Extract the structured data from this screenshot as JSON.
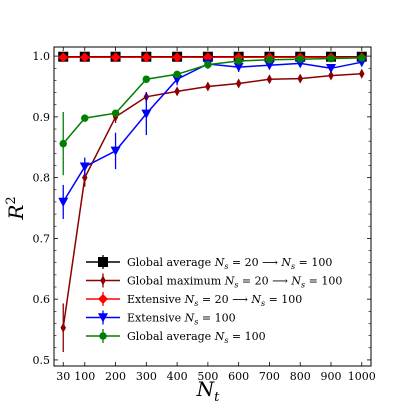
{
  "chart_data": {
    "type": "line",
    "xlabel": "N",
    "xlabel_sub": "t",
    "ylabel": "R",
    "ylabel_sup": "2",
    "x": [
      30,
      100,
      200,
      300,
      400,
      500,
      600,
      700,
      800,
      900,
      1000
    ],
    "xlim": [
      0,
      1030
    ],
    "ylim": [
      0.49,
      1.015
    ],
    "x_ticks": [
      30,
      100,
      200,
      300,
      400,
      500,
      600,
      700,
      800,
      900,
      1000
    ],
    "x_tick_labels": [
      "30",
      "100",
      "200",
      "300",
      "400",
      "500",
      "600",
      "700",
      "800",
      "900",
      "1000"
    ],
    "y_ticks": [
      0.5,
      0.6,
      0.7,
      0.8,
      0.9,
      1.0
    ],
    "y_tick_labels": [
      "0.5",
      "0.6",
      "0.7",
      "0.8",
      "0.9",
      "1.0"
    ],
    "grid": false,
    "legend_position": "lower-right",
    "series": [
      {
        "name": "Global average N_s = 20 ⟶ N_s = 100",
        "color": "#000000",
        "marker": "square",
        "values": [
          0.999,
          0.999,
          0.999,
          0.999,
          0.999,
          0.999,
          0.999,
          0.999,
          0.999,
          0.999,
          0.999
        ],
        "errors": [
          0.001,
          0.001,
          0.001,
          0.001,
          0.001,
          0.001,
          0.001,
          0.001,
          0.001,
          0.001,
          0.001
        ]
      },
      {
        "name": "Global maximum N_s = 20 ⟶ N_s = 100",
        "color": "#8b0000",
        "marker": "thin_diamond",
        "values": [
          0.553,
          0.8,
          0.9,
          0.933,
          0.942,
          0.95,
          0.955,
          0.962,
          0.963,
          0.968,
          0.971
        ],
        "errors": [
          0.04,
          0.015,
          0.01,
          0.008,
          0.006,
          0.005,
          0.005,
          0.004,
          0.004,
          0.004,
          0.003
        ]
      },
      {
        "name": "Extensive N_s = 20 ⟶ N_s = 100",
        "color": "#ff0000",
        "marker": "diamond",
        "values": [
          0.998,
          0.998,
          0.998,
          0.998,
          0.998,
          0.998,
          0.998,
          0.998,
          0.998,
          0.998,
          0.998
        ],
        "errors": [
          0.001,
          0.001,
          0.001,
          0.001,
          0.001,
          0.001,
          0.001,
          0.001,
          0.001,
          0.001,
          0.001
        ]
      },
      {
        "name": "Extensive N_s = 100",
        "color": "#0000ff",
        "marker": "triangle_down",
        "values": [
          0.76,
          0.818,
          0.844,
          0.905,
          0.962,
          0.987,
          0.982,
          0.985,
          0.988,
          0.98,
          0.99
        ],
        "errors": [
          0.028,
          0.015,
          0.03,
          0.035,
          0.01,
          0.008,
          0.008,
          0.006,
          0.006,
          0.006,
          0.005
        ]
      },
      {
        "name": "Global average N_s = 100",
        "color": "#008000",
        "marker": "circle",
        "values": [
          0.856,
          0.898,
          0.906,
          0.962,
          0.97,
          0.986,
          0.992,
          0.994,
          0.995,
          0.996,
          0.997
        ],
        "errors": [
          0.052,
          0.004,
          0.004,
          0.003,
          0.003,
          0.002,
          0.002,
          0.002,
          0.002,
          0.002,
          0.002
        ]
      }
    ],
    "legend": [
      {
        "label": "Global average",
        "math_a": "N",
        "sub_a": "s",
        "eq_a": " = 20 ⟶ ",
        "math_b": "N",
        "sub_b": "s",
        "eq_b": " = 100"
      },
      {
        "label": "Global maximum",
        "math_a": "N",
        "sub_a": "s",
        "eq_a": " = 20 ⟶ ",
        "math_b": "N",
        "sub_b": "s",
        "eq_b": " = 100"
      },
      {
        "label": "Extensive",
        "math_a": "N",
        "sub_a": "s",
        "eq_a": " = 20 ⟶ ",
        "math_b": "N",
        "sub_b": "s",
        "eq_b": " = 100"
      },
      {
        "label": "Extensive",
        "math_a": "N",
        "sub_a": "s",
        "eq_a": " = 100",
        "math_b": "",
        "sub_b": "",
        "eq_b": ""
      },
      {
        "label": "Global average",
        "math_a": "N",
        "sub_a": "s",
        "eq_a": " = 100",
        "math_b": "",
        "sub_b": "",
        "eq_b": ""
      }
    ]
  }
}
